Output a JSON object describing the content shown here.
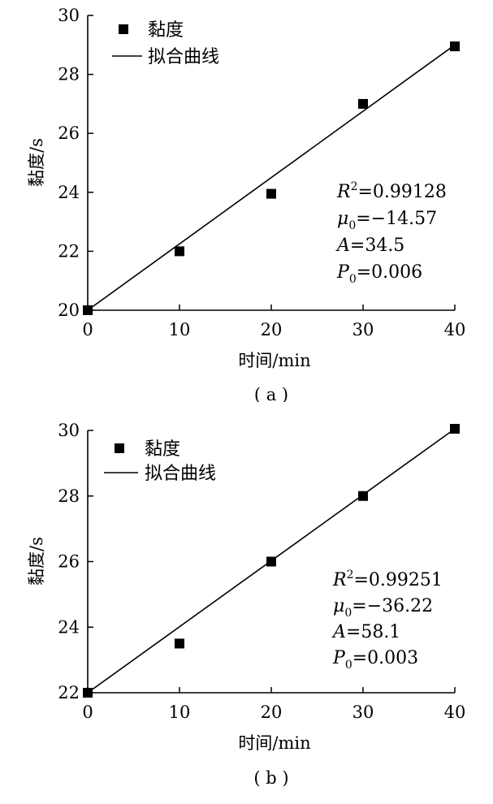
{
  "chart_data": [
    {
      "type": "scatter",
      "panel_label": "( a )",
      "xlabel": "时间/min",
      "ylabel": "黏度/s",
      "xlim": [
        0,
        40
      ],
      "ylim": [
        20,
        30
      ],
      "xticks": [
        "0",
        "10",
        "20",
        "30",
        "40"
      ],
      "yticks": [
        "20",
        "22",
        "24",
        "26",
        "28",
        "30"
      ],
      "legend": {
        "position": "top-left",
        "marker_label": "黏度",
        "line_label": "拟合曲线"
      },
      "series": [
        {
          "name": "黏度",
          "kind": "marker",
          "x": [
            0,
            10,
            20,
            30,
            40
          ],
          "y": [
            20.0,
            22.0,
            23.95,
            27.0,
            28.95
          ]
        },
        {
          "name": "拟合曲线",
          "kind": "line",
          "x": [
            0,
            40
          ],
          "y": [
            20.0,
            29.0
          ]
        }
      ],
      "stats": [
        {
          "sym": "R",
          "sup": "2",
          "sub": "",
          "val": "=0.99128"
        },
        {
          "sym": "μ",
          "sup": "",
          "sub": "0",
          "val": "=−14.57"
        },
        {
          "sym": "A",
          "sup": "",
          "sub": "",
          "val": "=34.5"
        },
        {
          "sym": "P",
          "sup": "",
          "sub": "0",
          "val": "=0.006"
        }
      ]
    },
    {
      "type": "scatter",
      "panel_label": "( b )",
      "xlabel": "时间/min",
      "ylabel": "黏度/s",
      "xlim": [
        0,
        40
      ],
      "ylim": [
        22,
        30
      ],
      "xticks": [
        "0",
        "10",
        "20",
        "30",
        "40"
      ],
      "yticks": [
        "22",
        "24",
        "26",
        "28",
        "30"
      ],
      "legend": {
        "position": "top-left",
        "marker_label": "黏度",
        "line_label": "拟合曲线"
      },
      "series": [
        {
          "name": "黏度",
          "kind": "marker",
          "x": [
            0,
            10,
            20,
            30,
            40
          ],
          "y": [
            22.0,
            23.5,
            26.0,
            28.0,
            30.05
          ]
        },
        {
          "name": "拟合曲线",
          "kind": "line",
          "x": [
            0,
            40
          ],
          "y": [
            22.0,
            30.05
          ]
        }
      ],
      "stats": [
        {
          "sym": "R",
          "sup": "2",
          "sub": "",
          "val": "=0.99251"
        },
        {
          "sym": "μ",
          "sup": "",
          "sub": "0",
          "val": "=−36.22"
        },
        {
          "sym": "A",
          "sup": "",
          "sub": "",
          "val": "=58.1"
        },
        {
          "sym": "P",
          "sup": "",
          "sub": "0",
          "val": "=0.003"
        }
      ]
    }
  ]
}
